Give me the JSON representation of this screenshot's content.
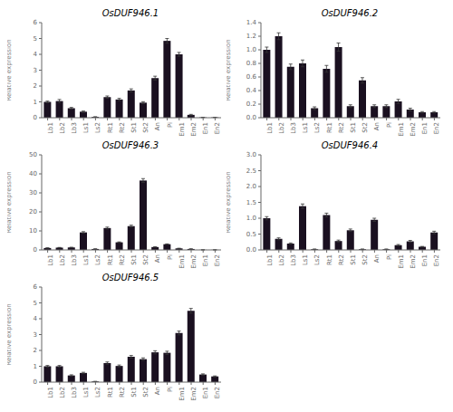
{
  "chart_data": [
    {
      "type": "bar",
      "title": "OsDUF946.1",
      "ylabel": "Relative expression",
      "color": "#1a1020",
      "categories": [
        "Lb1",
        "Lb2",
        "Lb3",
        "Ls1",
        "Ls2",
        "Rt1",
        "Rt2",
        "St1",
        "St2",
        "An",
        "Pi",
        "Em1",
        "Em2",
        "En1",
        "En2"
      ],
      "values": [
        1.0,
        1.05,
        0.6,
        0.38,
        0.05,
        1.3,
        1.15,
        1.72,
        0.95,
        2.5,
        4.85,
        4.0,
        0.18,
        0.02,
        0.02
      ],
      "errors": [
        0.05,
        0.1,
        0.05,
        0.04,
        0.01,
        0.07,
        0.07,
        0.1,
        0.06,
        0.12,
        0.15,
        0.12,
        0.03,
        0.01,
        0.01
      ],
      "ylim": [
        0,
        6
      ],
      "yticks": [
        0,
        1,
        2,
        3,
        4,
        5,
        6
      ]
    },
    {
      "type": "bar",
      "title": "OsDUF946.2",
      "ylabel": "Relative expression",
      "color": "#1a1020",
      "categories": [
        "Lb1",
        "Lb2",
        "Lb3",
        "Ls1",
        "Ls2",
        "Rt1",
        "Rt2",
        "St1",
        "St2",
        "An",
        "Pi",
        "Em1",
        "Em2",
        "En1",
        "En2"
      ],
      "values": [
        1.0,
        1.2,
        0.75,
        0.8,
        0.14,
        0.72,
        1.04,
        0.17,
        0.55,
        0.17,
        0.17,
        0.24,
        0.12,
        0.08,
        0.08
      ],
      "errors": [
        0.04,
        0.05,
        0.04,
        0.05,
        0.02,
        0.05,
        0.06,
        0.02,
        0.04,
        0.02,
        0.02,
        0.03,
        0.02,
        0.01,
        0.01
      ],
      "ylim": [
        0,
        1.4
      ],
      "yticks": [
        {
          "value": 0,
          "label": "0.0"
        },
        0.2,
        0.4,
        0.6,
        0.8,
        {
          "value": 1,
          "label": "1.0"
        },
        1.2,
        1.4
      ]
    },
    {
      "type": "bar",
      "title": "OsDUF946.3",
      "ylabel": "Relative expression",
      "color": "#1a1020",
      "categories": [
        "Lb1",
        "Lb2",
        "Lb3",
        "Ls1",
        "Ls2",
        "Rt1",
        "Rt2",
        "St1",
        "St2",
        "An",
        "Pi",
        "Em1",
        "Em2",
        "En1",
        "En2"
      ],
      "values": [
        1.0,
        1.2,
        1.3,
        9.2,
        0.5,
        11.5,
        4.0,
        12.5,
        36.5,
        1.5,
        3.0,
        0.8,
        0.5,
        0.05,
        0.05
      ],
      "errors": [
        0.08,
        0.1,
        0.1,
        0.4,
        0.05,
        0.5,
        0.2,
        0.5,
        1.0,
        0.1,
        0.15,
        0.08,
        0.05,
        0.01,
        0.01
      ],
      "ylim": [
        0,
        50
      ],
      "yticks": [
        0,
        10,
        20,
        30,
        40,
        50
      ]
    },
    {
      "type": "bar",
      "title": "OsDUF946.4",
      "ylabel": "Relative expression",
      "color": "#1a1020",
      "categories": [
        "Lb1",
        "Lb2",
        "Lb3",
        "Ls1",
        "Ls2",
        "Rt1",
        "Rt2",
        "St1",
        "St2",
        "An",
        "Pi",
        "Em1",
        "Em2",
        "En1",
        "En2"
      ],
      "values": [
        1.0,
        0.35,
        0.2,
        1.38,
        0.02,
        1.1,
        0.28,
        0.62,
        0.02,
        0.95,
        0.02,
        0.15,
        0.27,
        0.1,
        0.55
      ],
      "errors": [
        0.05,
        0.03,
        0.02,
        0.07,
        0.01,
        0.06,
        0.03,
        0.04,
        0.01,
        0.05,
        0.01,
        0.02,
        0.03,
        0.01,
        0.04
      ],
      "ylim": [
        0,
        3.0
      ],
      "yticks": [
        {
          "value": 0,
          "label": "0.0"
        },
        0.5,
        {
          "value": 1,
          "label": "1.0"
        },
        1.5,
        {
          "value": 2,
          "label": "2.0"
        },
        2.5,
        {
          "value": 3,
          "label": "3.0"
        }
      ]
    },
    {
      "type": "bar",
      "title": "OsDUF946.5",
      "ylabel": "Relative expression",
      "color": "#1a1020",
      "categories": [
        "Lb1",
        "Lb2",
        "Lb3",
        "Ls1",
        "Ls2",
        "Rt1",
        "Rt2",
        "St1",
        "St2",
        "An",
        "Pi",
        "Em1",
        "Em2",
        "En1",
        "En2"
      ],
      "values": [
        1.0,
        1.0,
        0.42,
        0.58,
        0.04,
        1.2,
        1.02,
        1.6,
        1.45,
        1.88,
        1.85,
        3.1,
        4.5,
        0.48,
        0.36
      ],
      "errors": [
        0.05,
        0.05,
        0.04,
        0.04,
        0.01,
        0.07,
        0.06,
        0.08,
        0.08,
        0.1,
        0.1,
        0.12,
        0.15,
        0.04,
        0.03
      ],
      "ylim": [
        0,
        6
      ],
      "yticks": [
        0,
        1,
        2,
        3,
        4,
        5,
        6
      ]
    }
  ]
}
